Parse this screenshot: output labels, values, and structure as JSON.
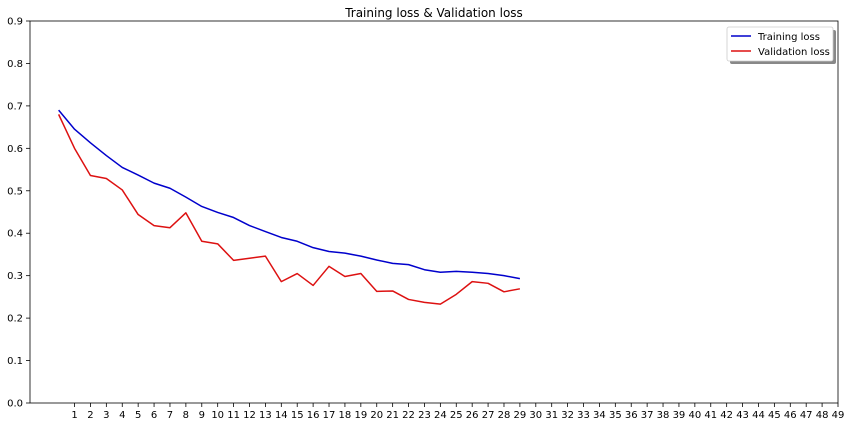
{
  "chart_data": {
    "type": "line",
    "title": "Training loss & Validation loss",
    "xlabel": "",
    "ylabel": "",
    "xlim": [
      -1.8,
      49
    ],
    "ylim": [
      0,
      0.9
    ],
    "xticks": [
      1,
      2,
      3,
      4,
      5,
      6,
      7,
      8,
      9,
      10,
      11,
      12,
      13,
      14,
      15,
      16,
      17,
      18,
      19,
      20,
      21,
      22,
      23,
      24,
      25,
      26,
      27,
      28,
      29,
      30,
      31,
      32,
      33,
      34,
      35,
      36,
      37,
      38,
      39,
      40,
      41,
      42,
      43,
      44,
      45,
      46,
      47,
      48,
      49
    ],
    "yticks": [
      0.0,
      0.1,
      0.2,
      0.3,
      0.4,
      0.5,
      0.6,
      0.7,
      0.8,
      0.9
    ],
    "ytick_labels": [
      "0.0",
      "0.1",
      "0.2",
      "0.3",
      "0.4",
      "0.5",
      "0.6",
      "0.7",
      "0.8",
      "0.9"
    ],
    "grid": false,
    "legend_position": "top-right",
    "x": [
      0,
      1,
      2,
      3,
      4,
      5,
      6,
      7,
      8,
      9,
      10,
      11,
      12,
      13,
      14,
      15,
      16,
      17,
      18,
      19,
      20,
      21,
      22,
      23,
      24,
      25,
      26,
      27,
      28,
      29
    ],
    "series": [
      {
        "name": "Training loss",
        "color": "#0000cc",
        "values": [
          0.69,
          0.645,
          0.613,
          0.583,
          0.555,
          0.537,
          0.518,
          0.506,
          0.485,
          0.463,
          0.449,
          0.437,
          0.418,
          0.404,
          0.39,
          0.381,
          0.366,
          0.357,
          0.353,
          0.346,
          0.337,
          0.329,
          0.326,
          0.314,
          0.308,
          0.31,
          0.308,
          0.305,
          0.3,
          0.293
        ]
      },
      {
        "name": "Validation loss",
        "color": "#dd1111",
        "values": [
          0.68,
          0.6,
          0.536,
          0.529,
          0.502,
          0.444,
          0.418,
          0.413,
          0.448,
          0.381,
          0.375,
          0.336,
          0.341,
          0.346,
          0.286,
          0.305,
          0.277,
          0.322,
          0.298,
          0.305,
          0.263,
          0.264,
          0.244,
          0.237,
          0.233,
          0.256,
          0.286,
          0.282,
          0.262,
          0.269
        ]
      }
    ]
  }
}
